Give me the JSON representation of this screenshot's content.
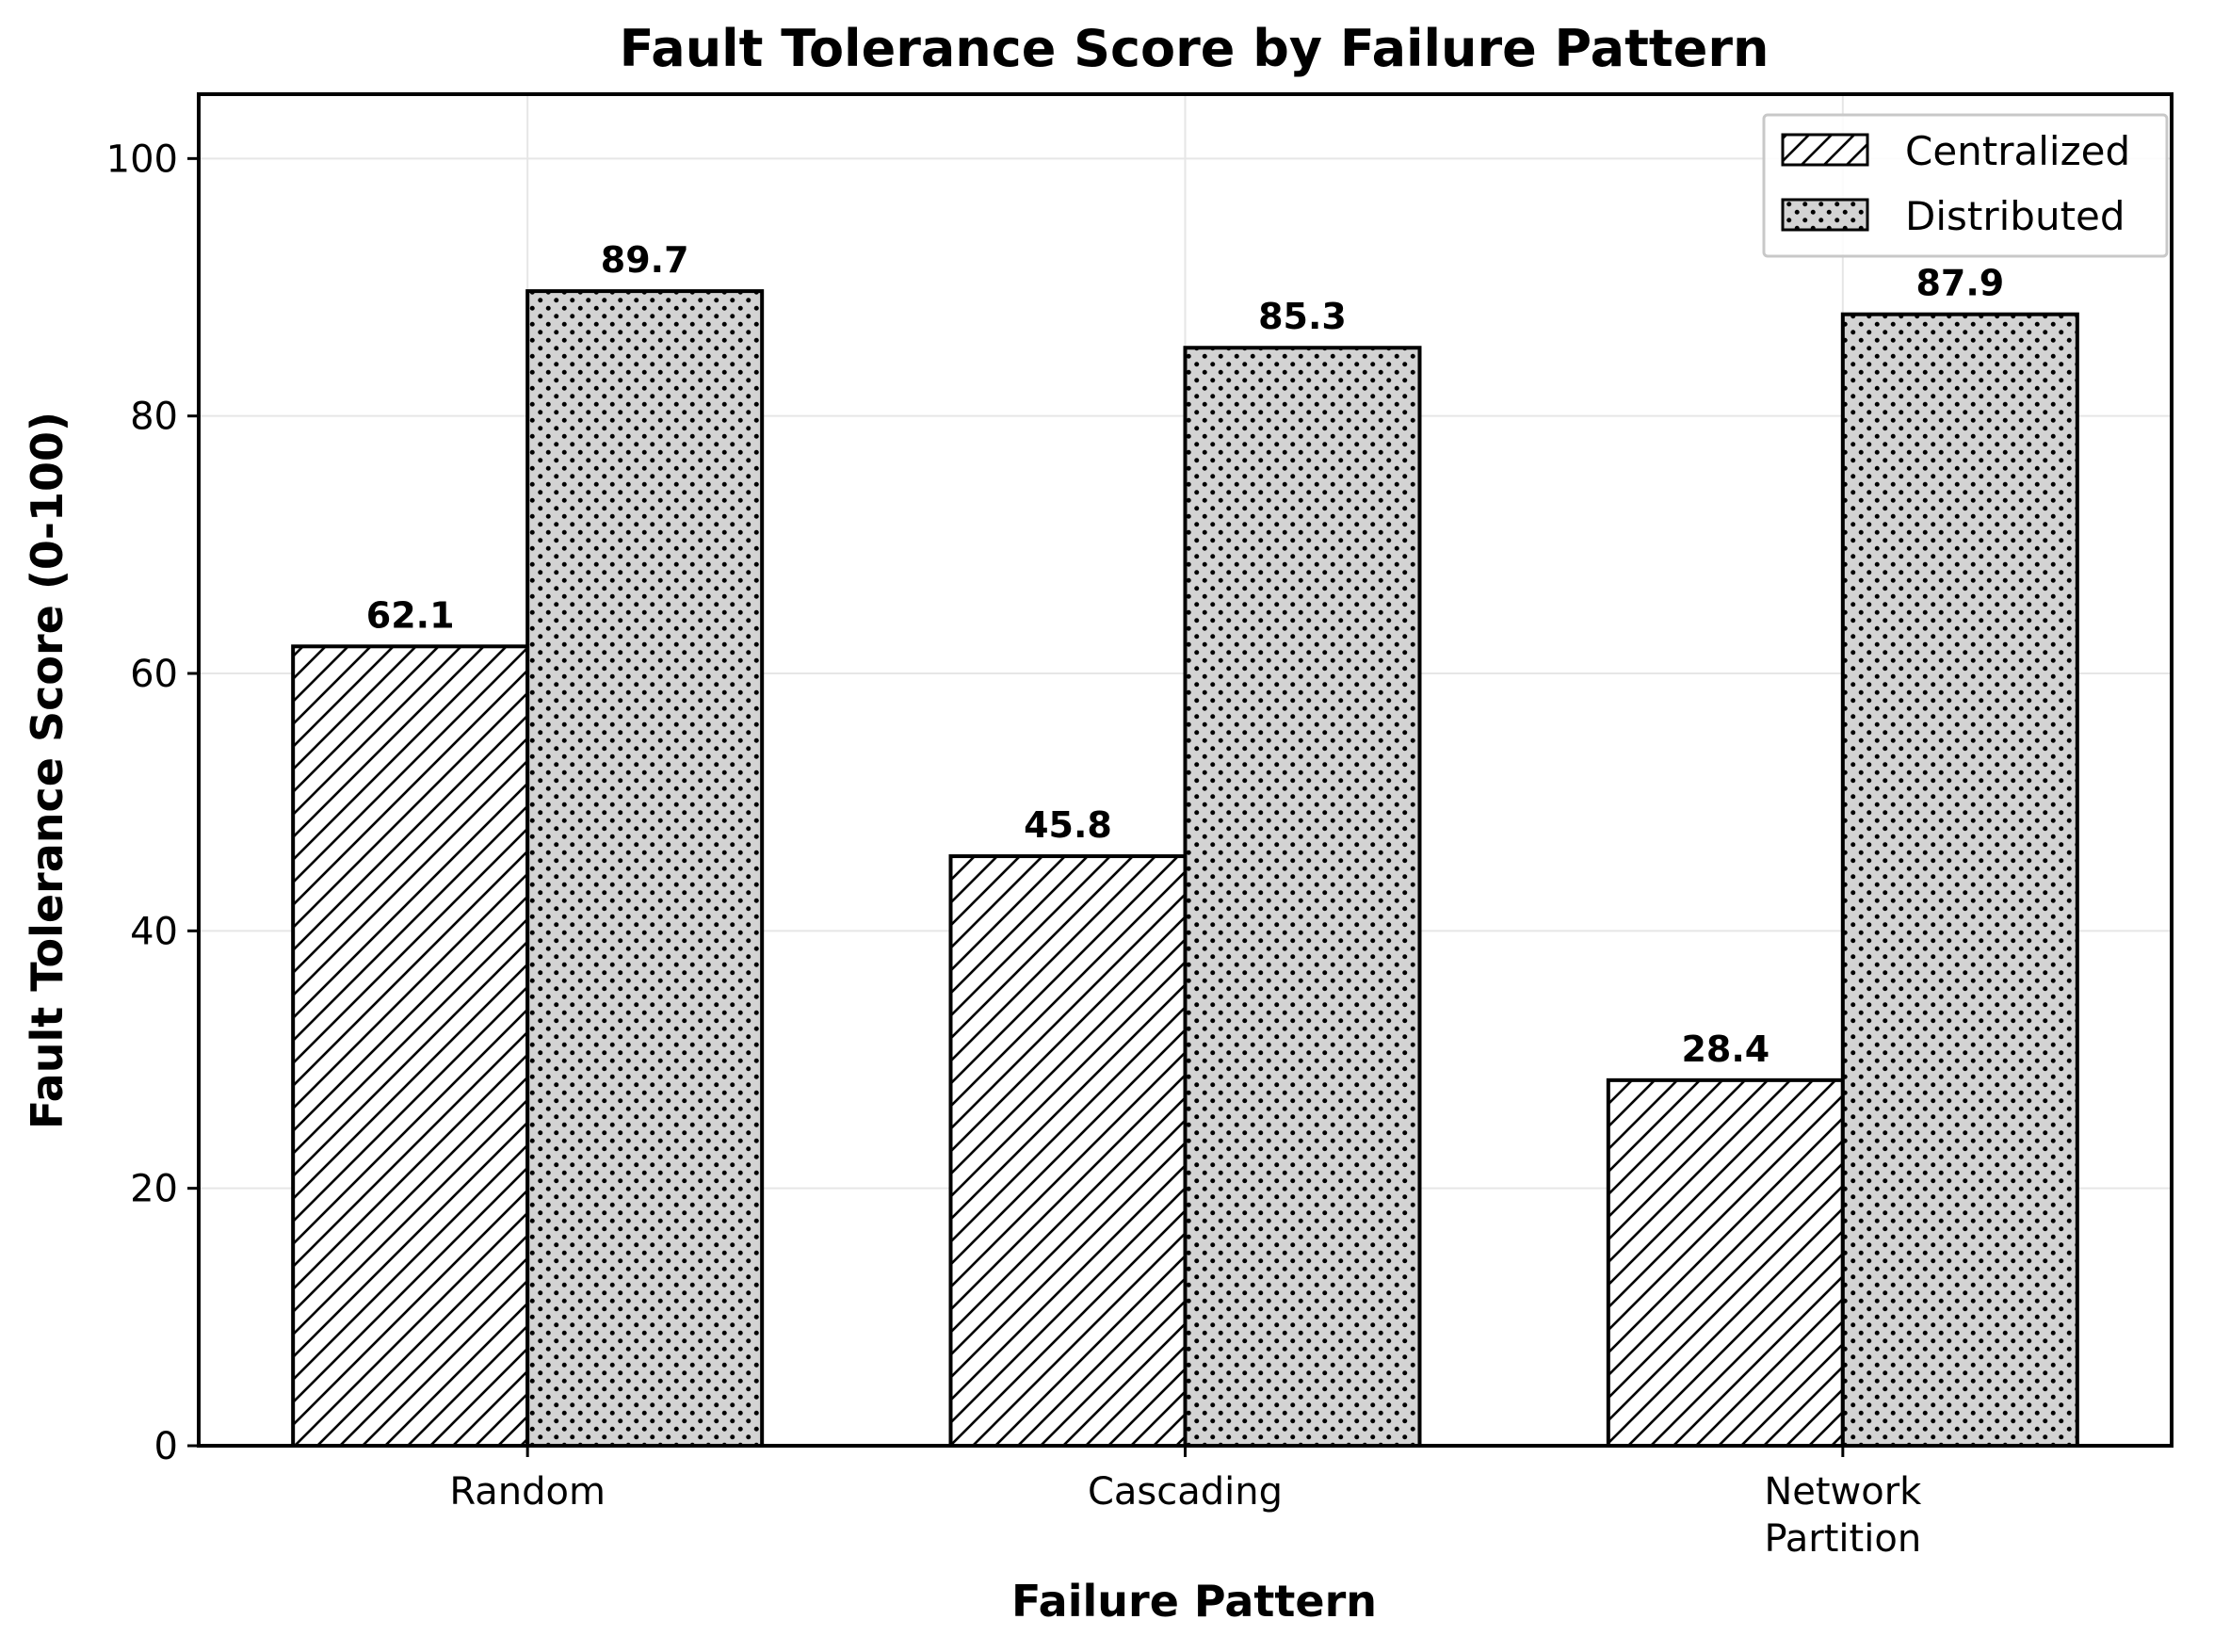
{
  "chart_data": {
    "type": "bar",
    "title": "Fault Tolerance Score by Failure Pattern",
    "xlabel": "Failure Pattern",
    "ylabel": "Fault Tolerance Score (0-100)",
    "categories": [
      [
        "Random"
      ],
      [
        "Cascading"
      ],
      [
        "Network",
        "Partition"
      ]
    ],
    "series": [
      {
        "name": "Centralized",
        "values": [
          62.1,
          45.8,
          28.4
        ],
        "pattern": "hatch",
        "fill": "#ffffff"
      },
      {
        "name": "Distributed",
        "values": [
          89.7,
          85.3,
          87.9
        ],
        "pattern": "dots",
        "fill": "#d3d3d3"
      }
    ],
    "value_labels": [
      [
        "62.1",
        "45.8",
        "28.4"
      ],
      [
        "89.7",
        "85.3",
        "87.9"
      ]
    ],
    "ylim": [
      0,
      105
    ],
    "yticks": [
      0,
      20,
      40,
      60,
      80,
      100
    ],
    "grid": true,
    "legend_position": "top-right",
    "colors": {
      "edge": "#000000",
      "grid": "#e6e6e6",
      "distributed_fill": "#d3d3d3"
    }
  }
}
